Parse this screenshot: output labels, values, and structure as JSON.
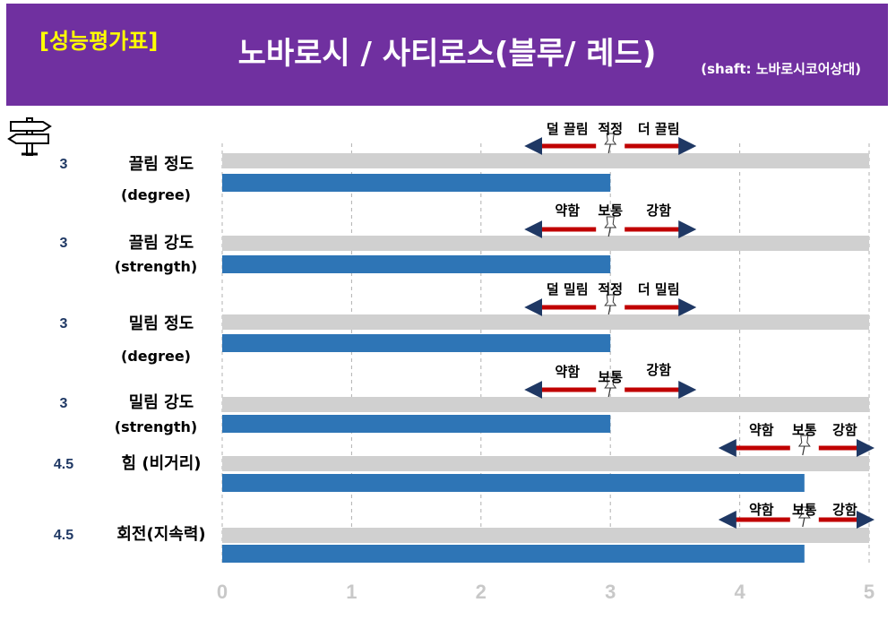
{
  "header": {
    "tag": "[성능평가표]",
    "title": "노바로시 / 사티로스(블루/ 레드)",
    "subtitle": "(shaft: 노바로시코어상대)"
  },
  "colors": {
    "header_bg": "#7030a0",
    "tag": "#ffff00",
    "bar": "#2e75b6",
    "track": "#d0d0d0",
    "arrow": "#c00000",
    "score": "#1f3864"
  },
  "icon": "signpost-icon",
  "chart_data": {
    "type": "bar",
    "orientation": "horizontal",
    "xlim": [
      0,
      5
    ],
    "xticks": [
      "0",
      "1",
      "2",
      "3",
      "4",
      "5"
    ],
    "grid": "vertical dashed",
    "rows": [
      {
        "score": "3",
        "label": "끌림 정도",
        "sublabel": "(degree)",
        "value": 3,
        "left": "덜 끌림",
        "mid": "적정",
        "right": "더 끌림",
        "mid_at": 3
      },
      {
        "score": "3",
        "label": "끌림 강도",
        "sublabel": "(strength)",
        "value": 3,
        "left": "약함",
        "mid": "보통",
        "right": "강함",
        "mid_at": 3
      },
      {
        "score": "3",
        "label": "밀림 정도",
        "sublabel": "(degree)",
        "value": 3,
        "left": "덜 밀림",
        "mid": "적정",
        "right": "더 밀림",
        "mid_at": 3
      },
      {
        "score": "3",
        "label": "밀림 강도",
        "sublabel": "(strength)",
        "value": 3,
        "left": "약함",
        "mid": "보통",
        "right": "강함",
        "mid_at": 3
      },
      {
        "score": "4.5",
        "label": "힘 (비거리)",
        "sublabel": "",
        "value": 4.5,
        "left": "약함",
        "mid": "보통",
        "right": "강함",
        "mid_at": 4.5
      },
      {
        "score": "4.5",
        "label": "회전(지속력)",
        "sublabel": "",
        "value": 4.5,
        "left": "약함",
        "mid": "보통",
        "right": "강함",
        "mid_at": 4.5
      }
    ]
  }
}
